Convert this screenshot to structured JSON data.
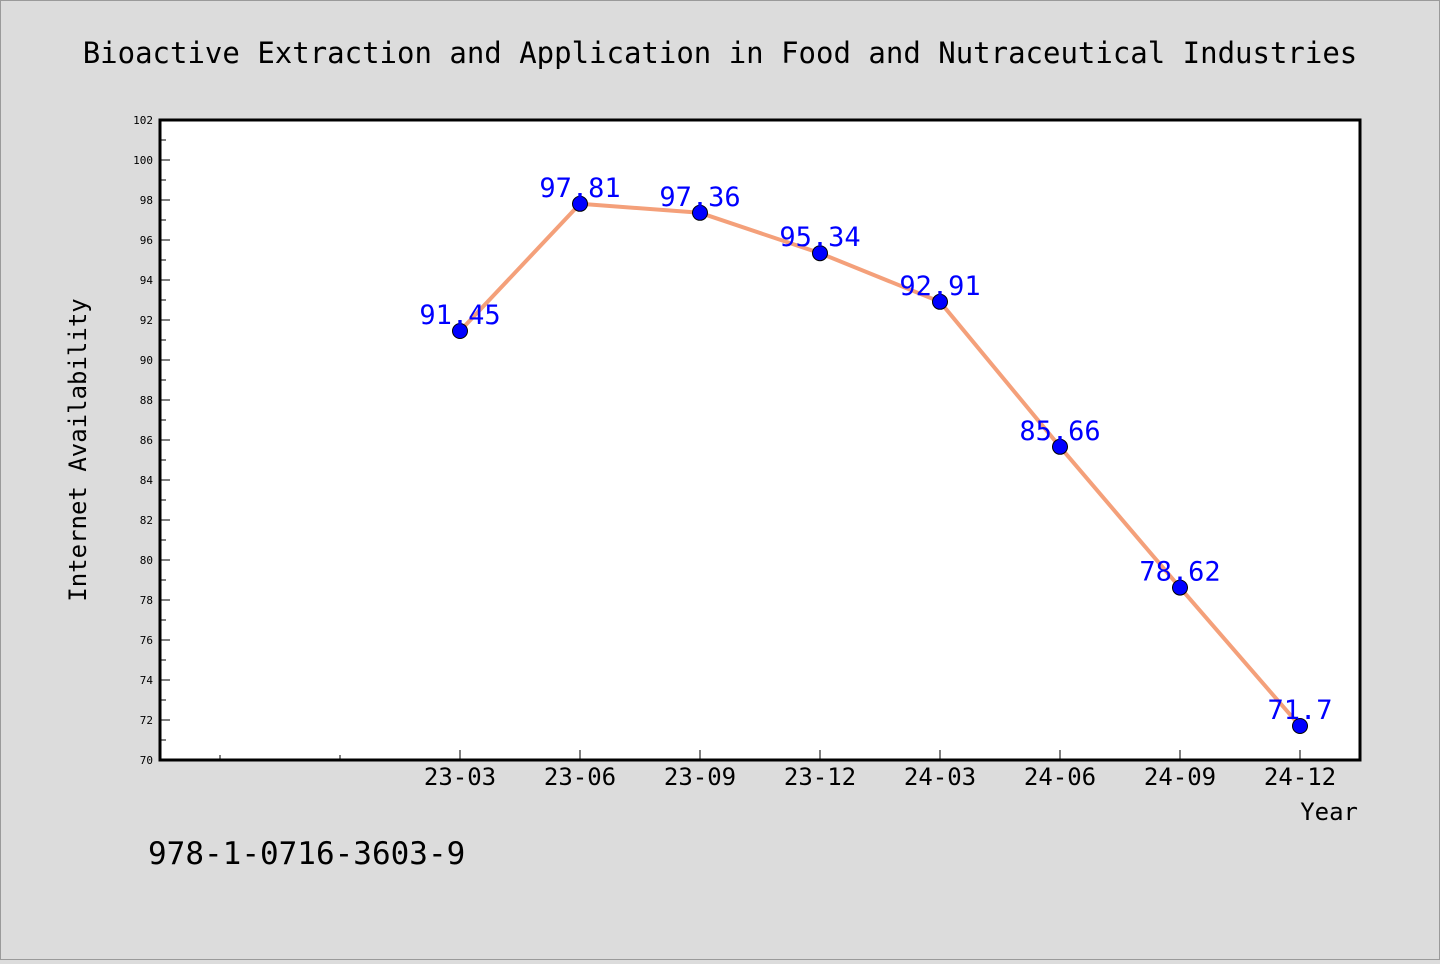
{
  "chart_data": {
    "type": "line",
    "title": "Bioactive Extraction and Application in Food and Nutraceutical Industries",
    "xlabel": "Year",
    "ylabel": "Internet Availability",
    "categories": [
      "23-03",
      "23-06",
      "23-09",
      "23-12",
      "24-03",
      "24-06",
      "24-09",
      "24-12"
    ],
    "values": [
      91.45,
      97.81,
      97.36,
      95.34,
      92.91,
      85.66,
      78.62,
      71.7
    ],
    "data_labels": [
      "91.45",
      "97.81",
      "97.36",
      "95.34",
      "92.91",
      "85.66",
      "78.62",
      "71.7"
    ],
    "ylim": [
      70,
      102
    ],
    "yticks": [
      70,
      72,
      74,
      76,
      78,
      80,
      82,
      84,
      86,
      88,
      90,
      92,
      94,
      96,
      98,
      100,
      102
    ],
    "grid": false,
    "legend": "none",
    "colors": {
      "line": "#f4a07a",
      "marker": "#0000ff",
      "label": "#0000ff",
      "background": "#dcdcdc",
      "plot_background": "#ffffff"
    }
  },
  "footer": {
    "isbn": "978-1-0716-3603-9"
  }
}
